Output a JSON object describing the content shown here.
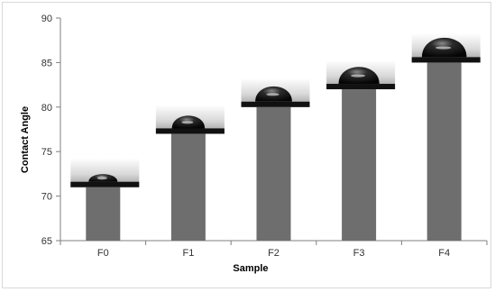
{
  "chart_data": {
    "type": "bar",
    "categories": [
      "F0",
      "F1",
      "F2",
      "F3",
      "F4"
    ],
    "values": [
      71,
      77,
      80,
      82,
      85
    ],
    "xlabel": "Sample",
    "ylabel": "Contact Angle",
    "ylim": [
      65,
      90
    ],
    "yticks": [
      "65",
      "70",
      "75",
      "80",
      "85",
      "90"
    ],
    "grid": false,
    "legend": "none",
    "bar_color": "#6e6e6e",
    "drop_inset_images": [
      "water-droplet-icon",
      "water-droplet-icon",
      "water-droplet-icon",
      "water-droplet-icon",
      "water-droplet-icon"
    ]
  }
}
